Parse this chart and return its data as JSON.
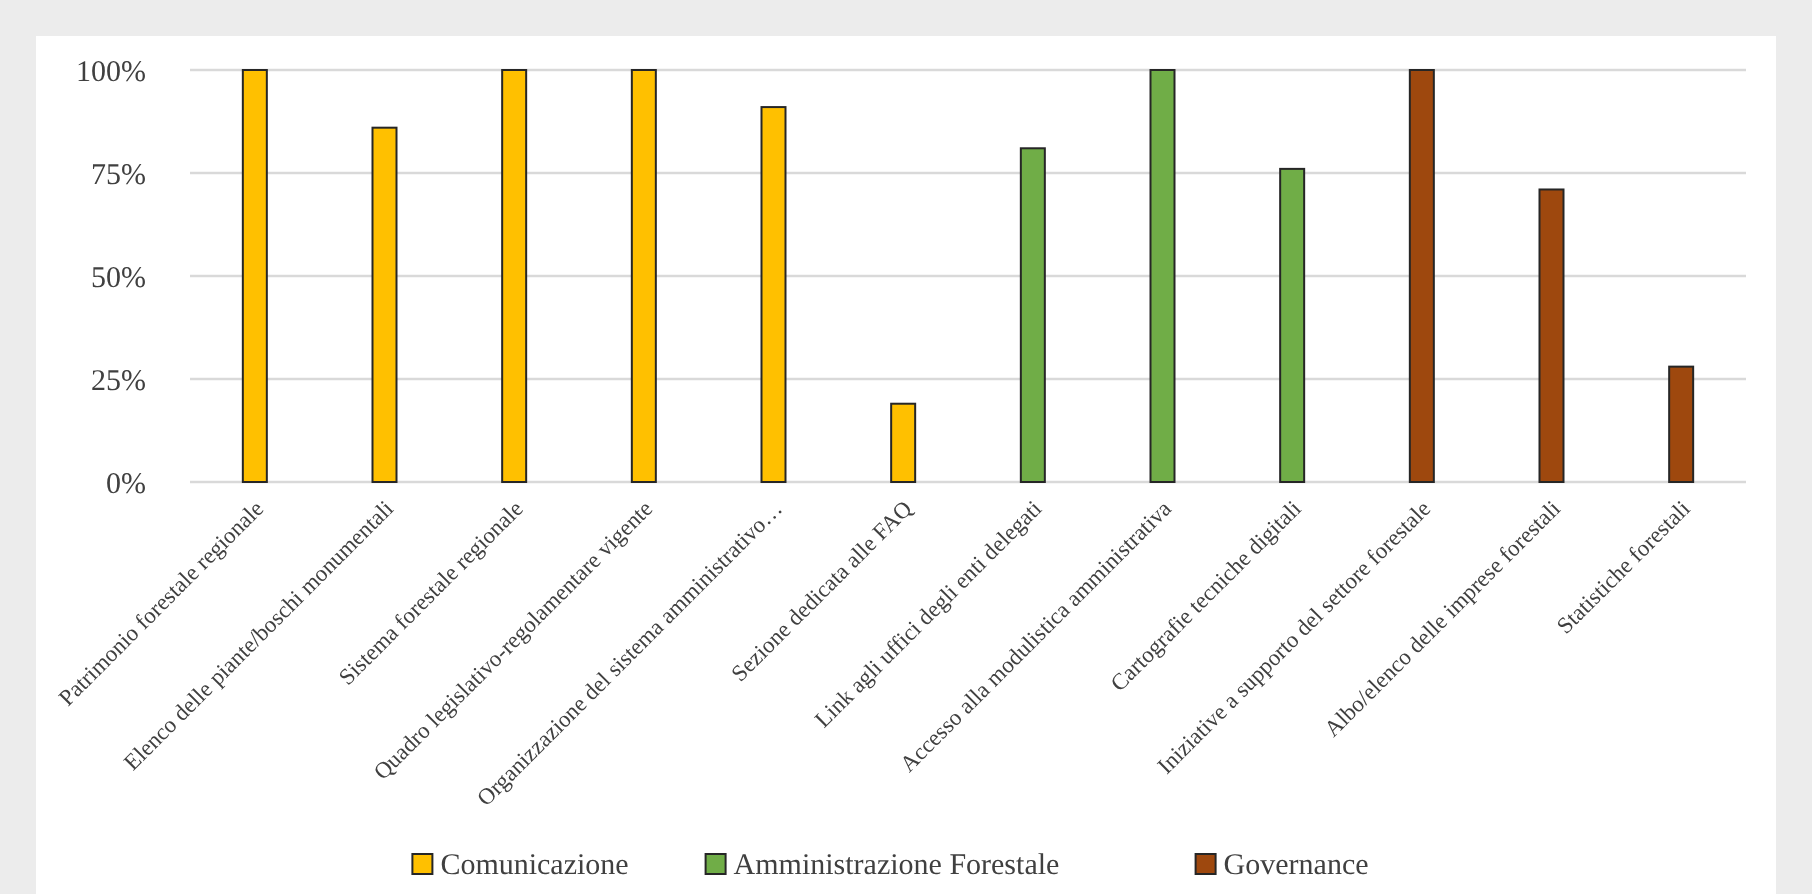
{
  "chart_data": {
    "type": "bar",
    "categories": [
      "Patrimonio forestale regionale",
      "Elenco delle piante/boschi monumentali",
      "Sistema forestale regionale",
      "Quadro legislativo-regolamentare vigente",
      "Organizzazione del sistema amministrativo…",
      "Sezione dedicata alle FAQ",
      "Link agli uffici degli enti delegati",
      "Accesso alla modulistica amministrativa",
      "Cartografie tecniche digitali",
      "Iniziative a supporto del settore forestale",
      "Albo/elenco delle imprese forestali",
      "Statistiche forestali"
    ],
    "series": [
      {
        "name": "Comunicazione",
        "color": "#ffc000",
        "values": [
          100,
          86,
          100,
          100,
          91,
          19,
          null,
          null,
          null,
          null,
          null,
          null
        ]
      },
      {
        "name": "Amministrazione Forestale",
        "color": "#70ad47",
        "values": [
          null,
          null,
          null,
          null,
          null,
          null,
          81,
          100,
          76,
          null,
          null,
          null
        ]
      },
      {
        "name": "Governance",
        "color": "#9e480e",
        "values": [
          null,
          null,
          null,
          null,
          null,
          null,
          null,
          null,
          null,
          100,
          71,
          28
        ]
      }
    ],
    "ylim": [
      0,
      100
    ],
    "yticks": [
      {
        "value": 0,
        "label": "0%"
      },
      {
        "value": 25,
        "label": "25%"
      },
      {
        "value": 50,
        "label": "50%"
      },
      {
        "value": 75,
        "label": "75%"
      },
      {
        "value": 100,
        "label": "100%"
      }
    ],
    "grid": "y",
    "legend": "bottom"
  }
}
